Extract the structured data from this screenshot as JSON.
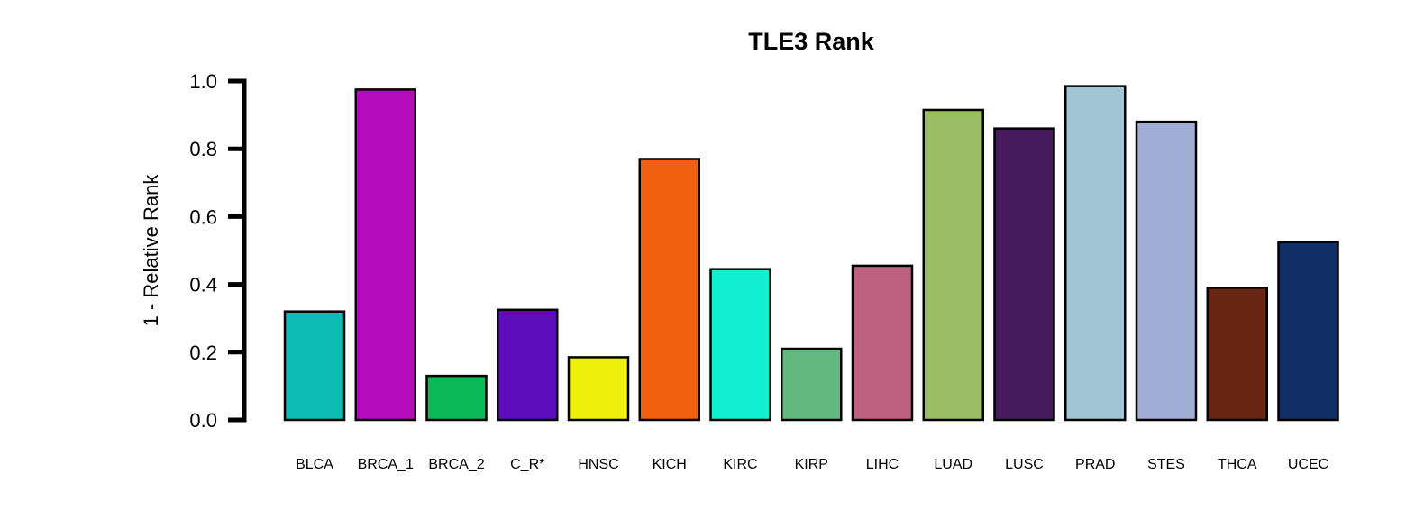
{
  "chart_data": {
    "type": "bar",
    "title": "TLE3 Rank",
    "xlabel": "",
    "ylabel": "1 - Relative Rank",
    "ylim": [
      0,
      1.0
    ],
    "yticks": [
      "0.0",
      "0.2",
      "0.4",
      "0.6",
      "0.8",
      "1.0"
    ],
    "grid": false,
    "legend": "none",
    "categories": [
      "BLCA",
      "BRCA_1",
      "BRCA_2",
      "C_R*",
      "HNSC",
      "KICH",
      "KIRC",
      "KIRP",
      "LIHC",
      "LUAD",
      "LUSC",
      "PRAD",
      "STES",
      "THCA",
      "UCEC"
    ],
    "values": [
      0.32,
      0.975,
      0.13,
      0.325,
      0.185,
      0.77,
      0.445,
      0.21,
      0.455,
      0.915,
      0.86,
      0.985,
      0.88,
      0.39,
      0.525
    ],
    "colors": [
      "#0BBBB4",
      "#B40BBB",
      "#0BB857",
      "#5E0BBB",
      "#EEF00B",
      "#F06010",
      "#10F0D0",
      "#62BA80",
      "#BD6180",
      "#98BD62",
      "#461B5E",
      "#A0C5D5",
      "#A0AED5",
      "#672512",
      "#0F2F66"
    ]
  }
}
